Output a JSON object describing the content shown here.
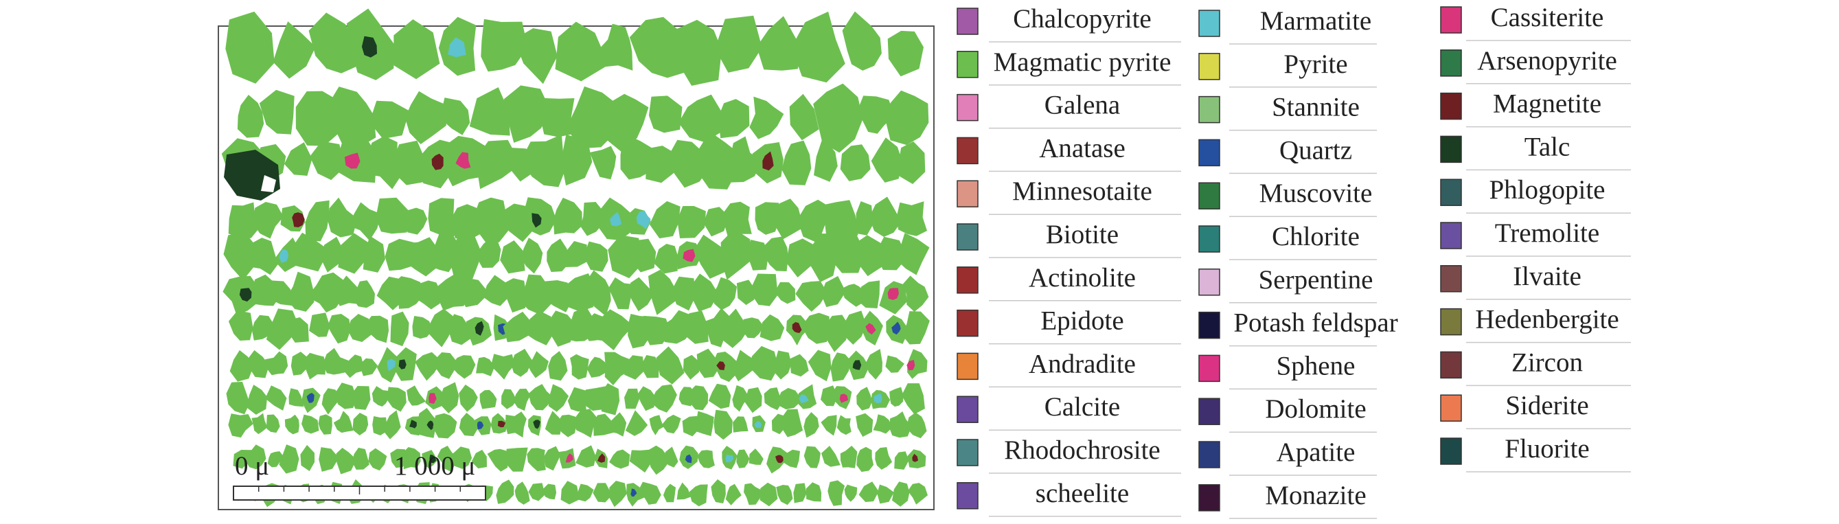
{
  "legend": {
    "columns": [
      [
        {
          "name": "Chalcopyrite",
          "color": "#a15aa5"
        },
        {
          "name": "Magmatic pyrite",
          "color": "#6cbf4f"
        },
        {
          "name": "Galena",
          "color": "#e07fb8"
        },
        {
          "name": "Anatase",
          "color": "#973232"
        },
        {
          "name": "Minnesotaite",
          "color": "#dc9485"
        },
        {
          "name": "Biotite",
          "color": "#4b8080"
        },
        {
          "name": "Actinolite",
          "color": "#9a2e2e"
        },
        {
          "name": "Epidote",
          "color": "#9b3030"
        },
        {
          "name": "Andradite",
          "color": "#e8843a"
        },
        {
          "name": "Calcite",
          "color": "#6a4a9c"
        },
        {
          "name": "Rhodochrosite",
          "color": "#4c8585"
        },
        {
          "name": "scheelite",
          "color": "#6c4c9e"
        }
      ],
      [
        {
          "name": "Marmatite",
          "color": "#5dc3ce"
        },
        {
          "name": "Pyrite",
          "color": "#d9d84a"
        },
        {
          "name": "Stannite",
          "color": "#88c27a"
        },
        {
          "name": "Quartz",
          "color": "#2550a0"
        },
        {
          "name": "Muscovite",
          "color": "#2f7a40"
        },
        {
          "name": "Chlorite",
          "color": "#2a8078"
        },
        {
          "name": "Serpentine",
          "color": "#dbb4d8"
        },
        {
          "name": "Potash feldspar",
          "color": "#15143a"
        },
        {
          "name": "Sphene",
          "color": "#dc3283"
        },
        {
          "name": "Dolomite",
          "color": "#3f2f6f"
        },
        {
          "name": "Apatite",
          "color": "#2a3c7c"
        },
        {
          "name": "Monazite",
          "color": "#3a1536"
        }
      ],
      [
        {
          "name": "Cassiterite",
          "color": "#d8357a"
        },
        {
          "name": "Arsenopyrite",
          "color": "#2e7a48"
        },
        {
          "name": "Magnetite",
          "color": "#6e1f22"
        },
        {
          "name": "Talc",
          "color": "#1b3d22"
        },
        {
          "name": "Phlogopite",
          "color": "#335e60"
        },
        {
          "name": "Tremolite",
          "color": "#6a50a0"
        },
        {
          "name": "Ilvaite",
          "color": "#7a4a4a"
        },
        {
          "name": "Hedenbergite",
          "color": "#7a7a3c"
        },
        {
          "name": "Zircon",
          "color": "#73383c"
        },
        {
          "name": "Siderite",
          "color": "#ec7a50"
        },
        {
          "name": "Fluorite",
          "color": "#1d4a48"
        }
      ]
    ]
  },
  "scale_bar": {
    "start_label": "0 μ",
    "end_label": "1 000 μ"
  }
}
